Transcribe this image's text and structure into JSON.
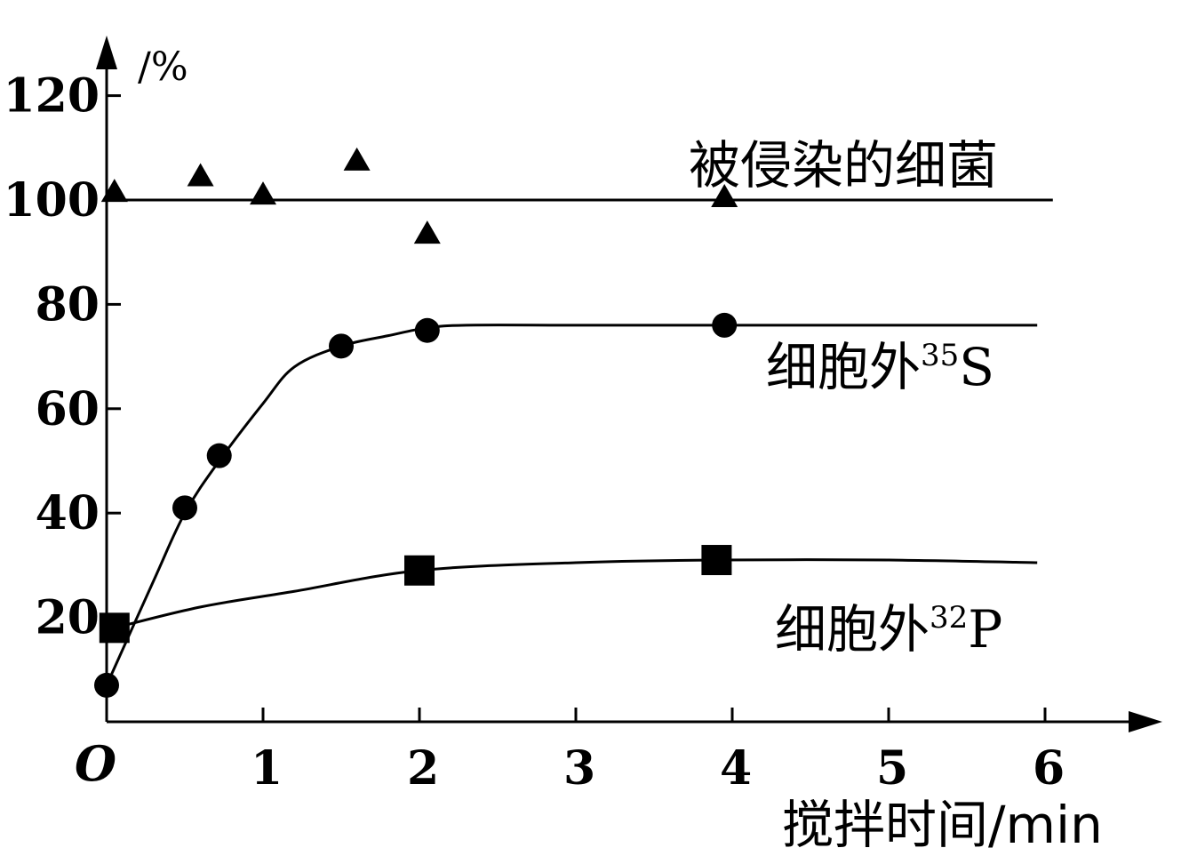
{
  "chart_data": {
    "type": "line",
    "title": "",
    "xlabel": "搅拌时间/min",
    "ylabel": "/%",
    "origin_label": "O",
    "xlim": [
      0,
      6
    ],
    "ylim": [
      0,
      120
    ],
    "x_ticks": [
      "1",
      "2",
      "3",
      "4",
      "5",
      "6"
    ],
    "y_ticks": [
      "20",
      "40",
      "60",
      "80",
      "100",
      "120"
    ],
    "grid": false,
    "series": [
      {
        "name": "被侵染的细菌",
        "marker": "triangle",
        "points": [
          {
            "x": 0.05,
            "y": 101
          },
          {
            "x": 0.6,
            "y": 104
          },
          {
            "x": 1.0,
            "y": 100.5
          },
          {
            "x": 1.6,
            "y": 107
          },
          {
            "x": 2.05,
            "y": 93
          },
          {
            "x": 3.95,
            "y": 100
          }
        ],
        "curve": [
          {
            "x": 0,
            "y": 100
          },
          {
            "x": 6.05,
            "y": 100
          }
        ]
      },
      {
        "name": "细胞外",
        "superscript": "35",
        "suffix": "S",
        "marker": "circle",
        "points": [
          {
            "x": 0.0,
            "y": 7
          },
          {
            "x": 0.5,
            "y": 41
          },
          {
            "x": 0.72,
            "y": 51
          },
          {
            "x": 1.5,
            "y": 72
          },
          {
            "x": 2.05,
            "y": 75
          },
          {
            "x": 3.95,
            "y": 76
          }
        ],
        "curve": [
          {
            "x": 0.0,
            "y": 7
          },
          {
            "x": 0.3,
            "y": 27
          },
          {
            "x": 0.5,
            "y": 40
          },
          {
            "x": 0.72,
            "y": 50
          },
          {
            "x": 1.0,
            "y": 61
          },
          {
            "x": 1.2,
            "y": 68
          },
          {
            "x": 1.5,
            "y": 72
          },
          {
            "x": 1.8,
            "y": 74
          },
          {
            "x": 2.05,
            "y": 75.5
          },
          {
            "x": 2.3,
            "y": 76
          },
          {
            "x": 3.0,
            "y": 76
          },
          {
            "x": 3.95,
            "y": 76
          },
          {
            "x": 5.95,
            "y": 76
          }
        ]
      },
      {
        "name": "细胞外",
        "superscript": "32",
        "suffix": "P",
        "marker": "square",
        "points": [
          {
            "x": 0.05,
            "y": 18
          },
          {
            "x": 2.0,
            "y": 29
          },
          {
            "x": 3.9,
            "y": 31
          }
        ],
        "curve": [
          {
            "x": 0.05,
            "y": 18
          },
          {
            "x": 0.6,
            "y": 22
          },
          {
            "x": 1.2,
            "y": 25
          },
          {
            "x": 2.0,
            "y": 29
          },
          {
            "x": 3.0,
            "y": 30.5
          },
          {
            "x": 3.9,
            "y": 31
          },
          {
            "x": 5.0,
            "y": 31
          },
          {
            "x": 5.95,
            "y": 30.5
          }
        ]
      }
    ]
  }
}
